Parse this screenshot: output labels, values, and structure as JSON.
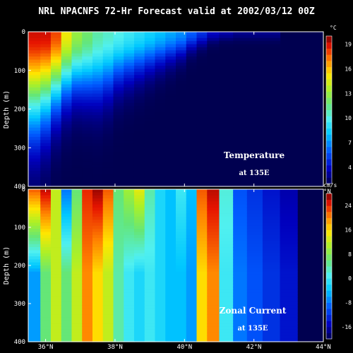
{
  "title": "NRL NPACNFS 72-Hr Forecast valid at 2002/03/12 00Z",
  "panels": [
    {
      "id": "temperature",
      "ylabel": "Depth (m)",
      "annotation_line1": "Temperature",
      "annotation_line2": "at 135E",
      "colorbar_unit": "°C"
    },
    {
      "id": "zonal-current",
      "ylabel": "Depth (m)",
      "annotation_line1": "Zonal Current",
      "annotation_line2": "at 135E",
      "colorbar_unit": "cm/s"
    }
  ],
  "chart_data": [
    {
      "type": "heatmap",
      "title": "NRL NPACNFS 72-Hr Forecast valid at 2002/03/12 00Z",
      "variable": "Temperature at 135E",
      "ylabel": "Depth (m)",
      "x_ticks": [
        "36°N",
        "38°N",
        "40°N",
        "42°N",
        "44°N"
      ],
      "x_tick_values": [
        36,
        38,
        40,
        42,
        44
      ],
      "y_ticks": [
        "0",
        "100",
        "200",
        "300",
        "400"
      ],
      "y_tick_values": [
        0,
        100,
        200,
        300,
        400
      ],
      "xlim": [
        35.5,
        44
      ],
      "ylim": [
        400,
        0
      ],
      "colorbar_ticks": [
        "4",
        "7",
        "10",
        "13",
        "16",
        "19"
      ],
      "colorbar_values": [
        4,
        7,
        10,
        13,
        16,
        19
      ],
      "colorbar_range": [
        2,
        20
      ],
      "x": [
        35.7,
        36.0,
        36.3,
        36.6,
        36.9,
        37.2,
        37.5,
        37.8,
        38.1,
        38.4,
        38.7,
        39.0,
        39.3,
        39.6,
        39.9,
        40.2,
        40.5,
        40.8,
        41.2,
        41.6,
        42.0,
        42.5,
        43.0,
        43.5
      ],
      "depth_profile": {
        "surface_temp": [
          19,
          19,
          18,
          15,
          13,
          12,
          11,
          10.5,
          10,
          9.5,
          9,
          8.5,
          8,
          7.5,
          7,
          6,
          5,
          4,
          3.5,
          3,
          3,
          3,
          3,
          3
        ],
        "decay_depth": [
          220,
          200,
          170,
          150,
          140,
          145,
          150,
          140,
          120,
          110,
          100,
          90,
          80,
          70,
          60,
          45,
          35,
          25,
          20,
          20,
          20,
          20,
          20,
          20
        ],
        "deep_temp": 2
      }
    },
    {
      "type": "heatmap",
      "title": "",
      "variable": "Zonal Current at 135E",
      "ylabel": "Depth (m)",
      "x_ticks": [
        "36°N",
        "38°N",
        "40°N",
        "42°N",
        "44°N"
      ],
      "x_tick_values": [
        36,
        38,
        40,
        42,
        44
      ],
      "y_ticks": [
        "0",
        "100",
        "200",
        "300",
        "400"
      ],
      "y_tick_values": [
        0,
        100,
        200,
        300,
        400
      ],
      "xlim": [
        35.5,
        44
      ],
      "ylim": [
        400,
        0
      ],
      "colorbar_ticks": [
        "24",
        "16",
        "8",
        "0",
        "-8",
        "-16"
      ],
      "colorbar_values": [
        24,
        16,
        8,
        0,
        -8,
        -16
      ],
      "colorbar_range": [
        -20,
        28
      ],
      "x": [
        35.7,
        36.0,
        36.3,
        36.6,
        36.9,
        37.2,
        37.5,
        37.8,
        38.1,
        38.4,
        38.7,
        39.0,
        39.3,
        39.6,
        39.9,
        40.2,
        40.5,
        40.8,
        41.2,
        41.6,
        42.0,
        42.5,
        43.0,
        43.5
      ],
      "column_profile": {
        "upper_value": [
          22,
          26,
          12,
          -8,
          6,
          24,
          27,
          22,
          6,
          10,
          14,
          4,
          -2,
          -4,
          0,
          -4,
          22,
          26,
          2,
          -10,
          -12,
          -14,
          -16,
          -14
        ],
        "lower_value": [
          -6,
          6,
          12,
          6,
          12,
          20,
          16,
          12,
          4,
          0,
          -2,
          0,
          -2,
          -4,
          -4,
          -6,
          16,
          20,
          0,
          -8,
          -10,
          -12,
          -14,
          -12
        ]
      }
    }
  ]
}
